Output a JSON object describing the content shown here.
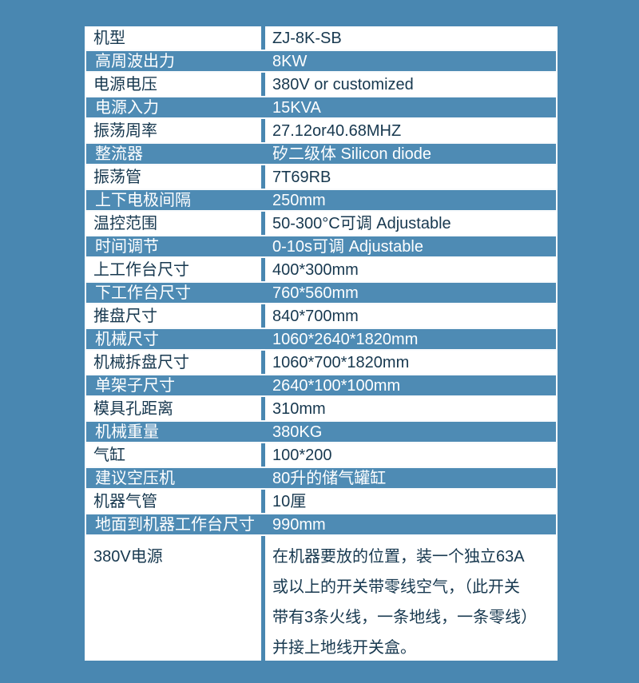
{
  "page": {
    "background_color": "#4987b1",
    "row_highlight_color": "#4e8bb4",
    "text_dark_color": "#17384f",
    "text_light_color": "#ffffff"
  },
  "table": {
    "rows": [
      {
        "label": "机型",
        "value": "ZJ-8K-SB",
        "variant": "light"
      },
      {
        "label": "高周波出力",
        "value": "8KW",
        "variant": "dark"
      },
      {
        "label": "电源电压",
        "value": "380V or customized",
        "variant": "light"
      },
      {
        "label": "电源入力",
        "value": "15KVA",
        "variant": "dark"
      },
      {
        "label": "振荡周率",
        "value": "27.12or40.68MHZ",
        "variant": "light"
      },
      {
        "label": "整流器",
        "value": "矽二级体 Silicon diode",
        "variant": "dark"
      },
      {
        "label": "振荡管",
        "value": "7T69RB",
        "variant": "light"
      },
      {
        "label": "上下电极间隔",
        "value": "250mm",
        "variant": "dark"
      },
      {
        "label": "温控范围",
        "value": "50-300°C可调 Adjustable",
        "variant": "light"
      },
      {
        "label": "时间调节",
        "value": "0-10s可调 Adjustable",
        "variant": "dark"
      },
      {
        "label": "上工作台尺寸",
        "value": "400*300mm",
        "variant": "light"
      },
      {
        "label": "下工作台尺寸",
        "value": "760*560mm",
        "variant": "dark"
      },
      {
        "label": "推盘尺寸",
        "value": "840*700mm",
        "variant": "light"
      },
      {
        "label": "机械尺寸",
        "value": "1060*2640*1820mm",
        "variant": "dark"
      },
      {
        "label": "机械拆盘尺寸",
        "value": "1060*700*1820mm",
        "variant": "light"
      },
      {
        "label": "单架子尺寸",
        "value": "2640*100*100mm",
        "variant": "dark"
      },
      {
        "label": "模具孔距离",
        "value": "310mm",
        "variant": "light"
      },
      {
        "label": "机械重量",
        "value": "380KG",
        "variant": "dark"
      },
      {
        "label": "气缸",
        "value": "100*200",
        "variant": "light"
      },
      {
        "label": "建议空压机",
        "value": "80升的储气罐缸",
        "variant": "dark"
      },
      {
        "label": "机器气管",
        "value": "10厘",
        "variant": "light"
      },
      {
        "label": "地面到机器工作台尺寸",
        "value": "990mm",
        "variant": "dark"
      },
      {
        "label": "380V电源",
        "value": "在机器要放的位置，装一个独立63A\n或以上的开关带零线空气，（此开关\n带有3条火线，一条地线，一条零线）\n并接上地线开关盒。",
        "variant": "light",
        "tall": true
      }
    ]
  }
}
